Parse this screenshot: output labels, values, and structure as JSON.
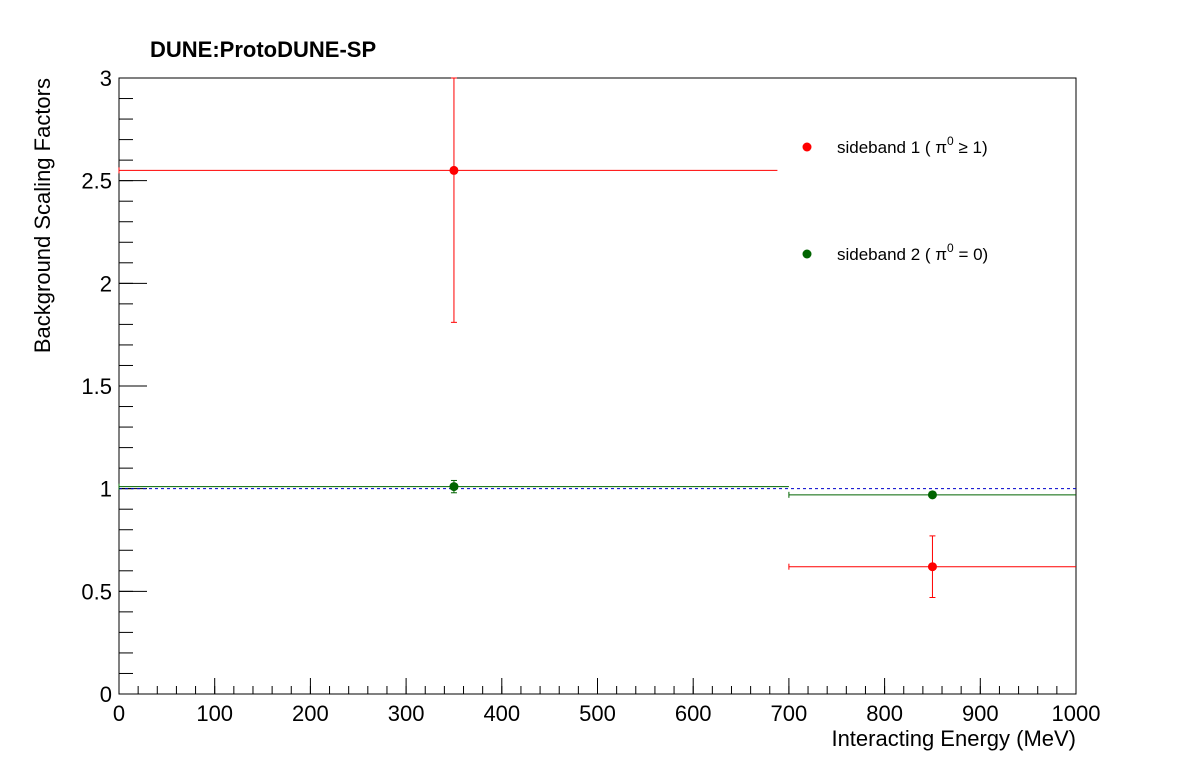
{
  "chart_data": {
    "type": "scatter",
    "title": "DUNE:ProtoDUNE-SP",
    "xlabel": "Interacting Energy (MeV)",
    "ylabel": "Background Scaling Factors",
    "xlim": [
      0,
      1000
    ],
    "ylim": [
      0,
      3
    ],
    "x_ticks": [
      "0",
      "100",
      "200",
      "300",
      "400",
      "500",
      "600",
      "700",
      "800",
      "900",
      "1000"
    ],
    "y_ticks": [
      "0",
      "0.5",
      "1",
      "1.5",
      "2",
      "2.5",
      "3"
    ],
    "grid": false,
    "legend_position": "top-right",
    "reference_line": {
      "y": 1,
      "style": "dashed",
      "color": "#0000cc"
    },
    "series": [
      {
        "name": "sideband 1 ( π⁰ ≥ 1)",
        "legend_base": "sideband 1 ( π",
        "legend_sup": "0",
        "legend_tail": " ≥ 1)",
        "color": "#ff0000",
        "points": [
          {
            "x": 350,
            "y": 2.55,
            "xlow": 0,
            "xhigh": 688,
            "ylow": 1.81,
            "yhigh": 3.0
          },
          {
            "x": 850,
            "y": 0.62,
            "xlow": 700,
            "xhigh": 1000,
            "ylow": 0.47,
            "yhigh": 0.77
          }
        ]
      },
      {
        "name": "sideband 2 ( π⁰ = 0)",
        "legend_base": "sideband 2 ( π",
        "legend_sup": "0",
        "legend_tail": " = 0)",
        "color": "#006400",
        "points": [
          {
            "x": 350,
            "y": 1.01,
            "xlow": 0,
            "xhigh": 700,
            "ylow": 0.98,
            "yhigh": 1.04
          },
          {
            "x": 850,
            "y": 0.97,
            "xlow": 700,
            "xhigh": 1000,
            "ylow": 0.96,
            "yhigh": 0.98
          }
        ]
      }
    ]
  }
}
